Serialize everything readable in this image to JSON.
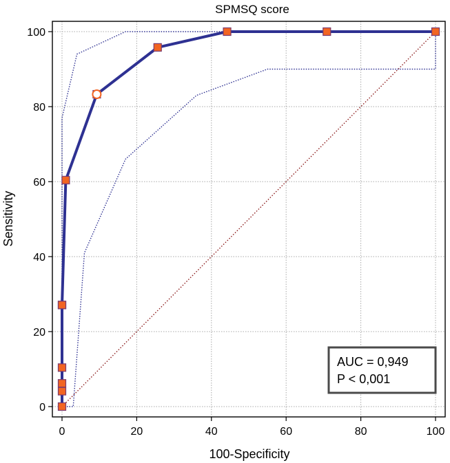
{
  "chart_data": {
    "type": "line",
    "title": "SPMSQ score",
    "xlabel": "100-Specificity",
    "ylabel": "Sensitivity",
    "xlim": [
      0,
      100
    ],
    "ylim": [
      0,
      100
    ],
    "xticks": [
      "0",
      "20",
      "40",
      "60",
      "80",
      "100"
    ],
    "yticks": [
      "0",
      "20",
      "40",
      "60",
      "80",
      "100"
    ],
    "grid": true,
    "colors": {
      "roc": "#2e3192",
      "marker_fill": "#f26522",
      "ci": "#2e3192",
      "diagonal": "#8b1a1a"
    },
    "series": [
      {
        "role": "roc",
        "x": [
          0,
          0,
          0,
          0,
          0,
          0,
          1,
          9.3,
          25.6,
          44.2,
          70.9,
          100
        ],
        "y": [
          0,
          4.1,
          6.2,
          10.4,
          27.1,
          27.1,
          60.4,
          83.3,
          95.8,
          100,
          100,
          100
        ]
      },
      {
        "role": "ci-upper",
        "x": [
          0,
          0,
          4,
          17,
          44,
          100
        ],
        "y": [
          0,
          77,
          94,
          100,
          100,
          100
        ]
      },
      {
        "role": "ci-lower",
        "x": [
          0,
          3,
          6,
          17,
          36,
          55,
          100,
          100
        ],
        "y": [
          0,
          0,
          41,
          66,
          83,
          90,
          90,
          100
        ]
      },
      {
        "role": "reference-diagonal",
        "x": [
          0,
          100
        ],
        "y": [
          0,
          100
        ]
      }
    ],
    "optimal_point": {
      "x": 9.3,
      "y": 83.3
    },
    "annotation": {
      "line1": "AUC = 0,949",
      "line2": "P < 0,001"
    }
  }
}
